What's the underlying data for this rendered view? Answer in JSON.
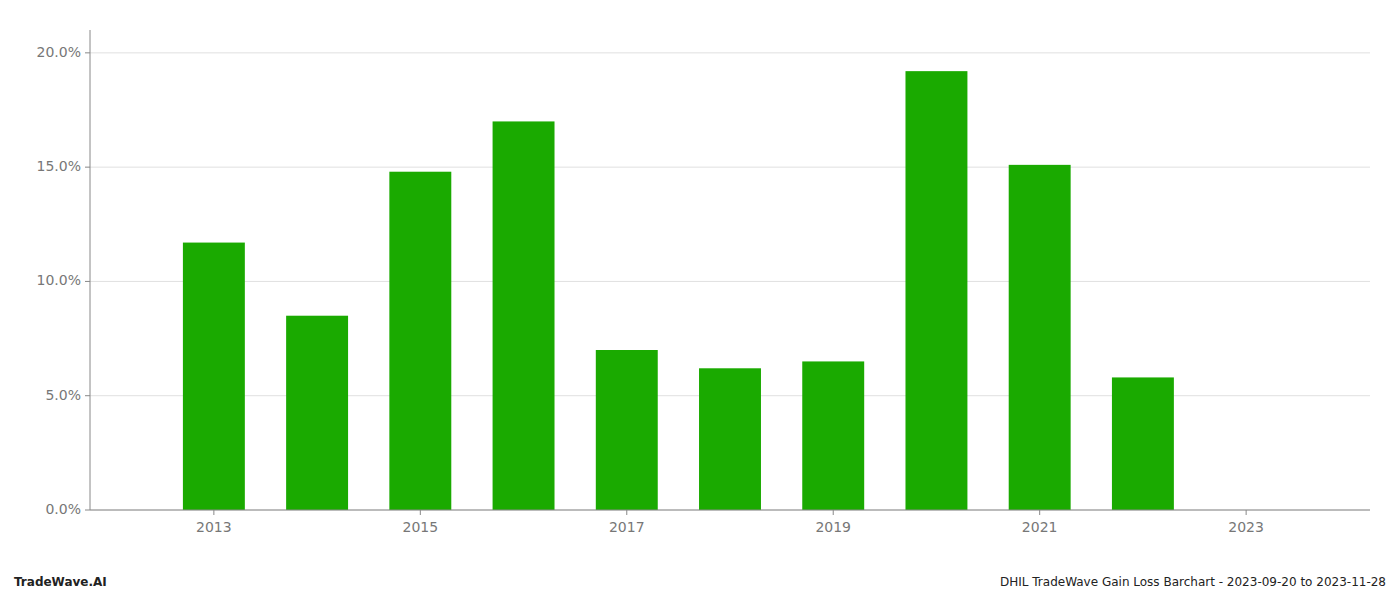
{
  "chart_data": {
    "type": "bar",
    "x": [
      2013,
      2014,
      2015,
      2016,
      2017,
      2018,
      2019,
      2020,
      2021,
      2022
    ],
    "values": [
      0.117,
      0.085,
      0.148,
      0.17,
      0.07,
      0.062,
      0.065,
      0.192,
      0.151,
      0.058
    ],
    "color": "#1aaa00",
    "xlim": [
      2011.8,
      2024.2
    ],
    "xticks": [
      2013,
      2015,
      2017,
      2019,
      2021,
      2023
    ],
    "ylim": [
      0,
      0.21
    ],
    "yticks": [
      {
        "value": 0.0,
        "label": "0.0%"
      },
      {
        "value": 0.05,
        "label": "5.0%"
      },
      {
        "value": 0.1,
        "label": "10.0%"
      },
      {
        "value": 0.15,
        "label": "15.0%"
      },
      {
        "value": 0.2,
        "label": "20.0%"
      }
    ],
    "grid": true,
    "annotations": [
      "TradeWave.AI",
      "DHIL TradeWave Gain Loss Barchart - 2023-09-20 to 2023-11-28"
    ]
  }
}
